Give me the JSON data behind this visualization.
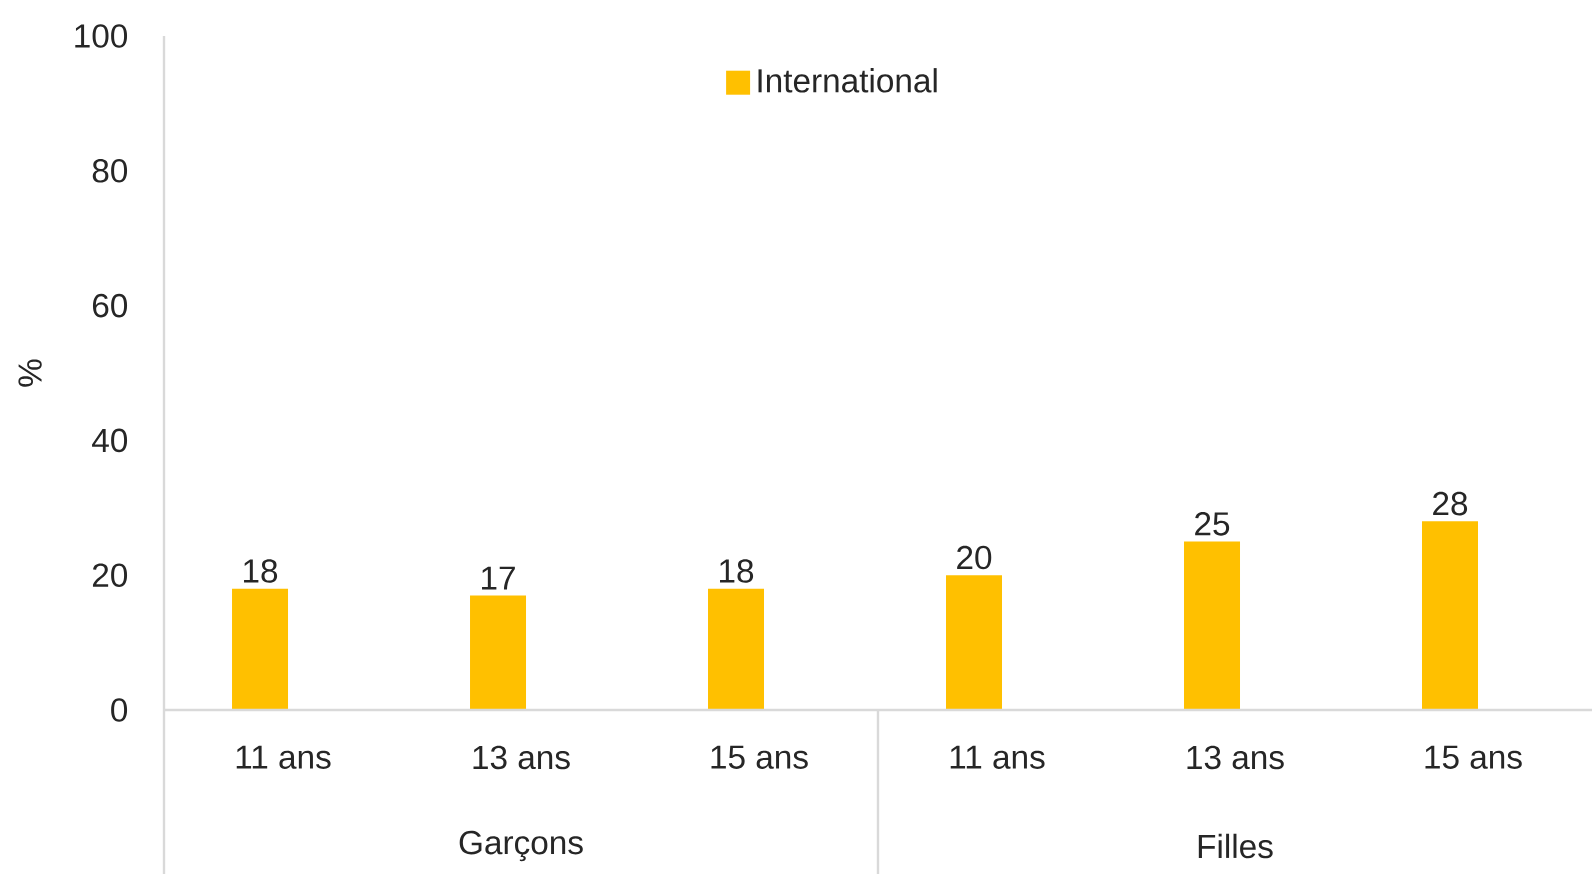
{
  "chart_data": {
    "type": "bar",
    "ylabel": "%",
    "categories": [
      "11 ans",
      "13 ans",
      "15 ans",
      "11 ans",
      "13 ans",
      "15 ans"
    ],
    "series": [
      {
        "name": "International",
        "color": "#ffc000",
        "values": [
          18,
          17,
          18,
          20,
          25,
          28
        ]
      }
    ],
    "ylim": [
      0,
      100
    ],
    "yticks": [
      0,
      20,
      40,
      60,
      80,
      100
    ],
    "data_labels": true,
    "legend": "top",
    "annotations": [
      "Garçons",
      "Filles"
    ]
  }
}
